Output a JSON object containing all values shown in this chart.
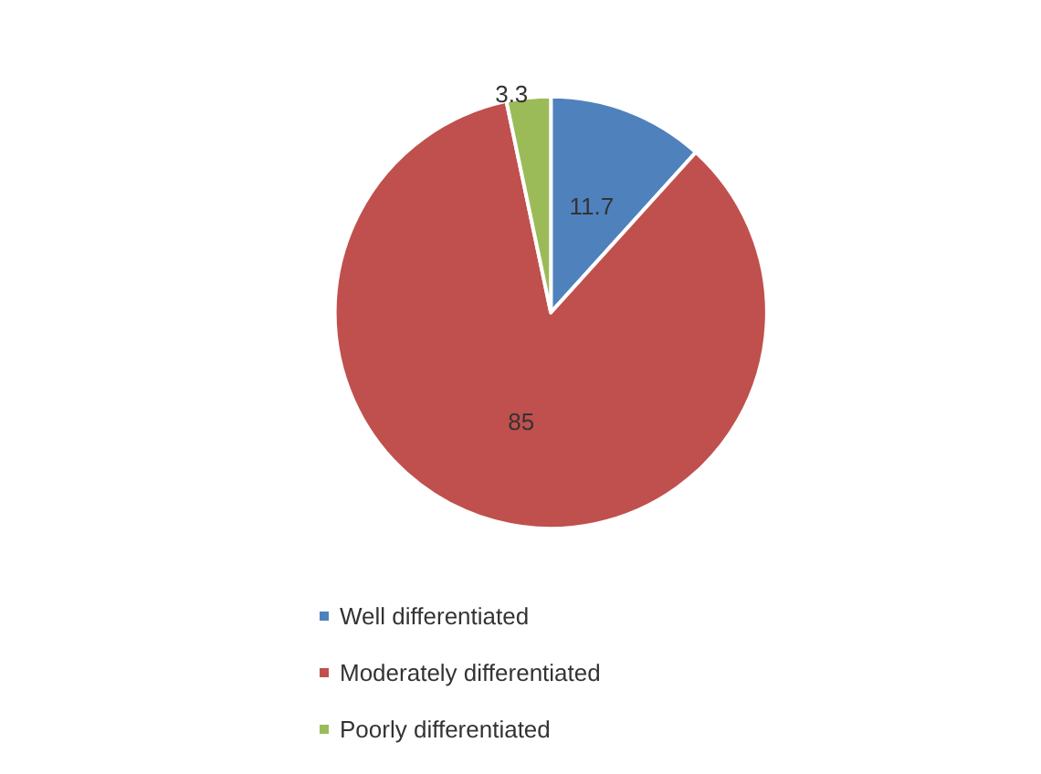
{
  "chart_data": {
    "type": "pie",
    "categories": [
      "Well differentiated",
      "Moderately differentiated",
      "Poorly differentiated"
    ],
    "values": [
      11.7,
      85,
      3.3
    ],
    "colors": [
      "#4f81bd",
      "#c0504d",
      "#9bbb59"
    ],
    "data_labels": true,
    "legend": "bottom"
  }
}
